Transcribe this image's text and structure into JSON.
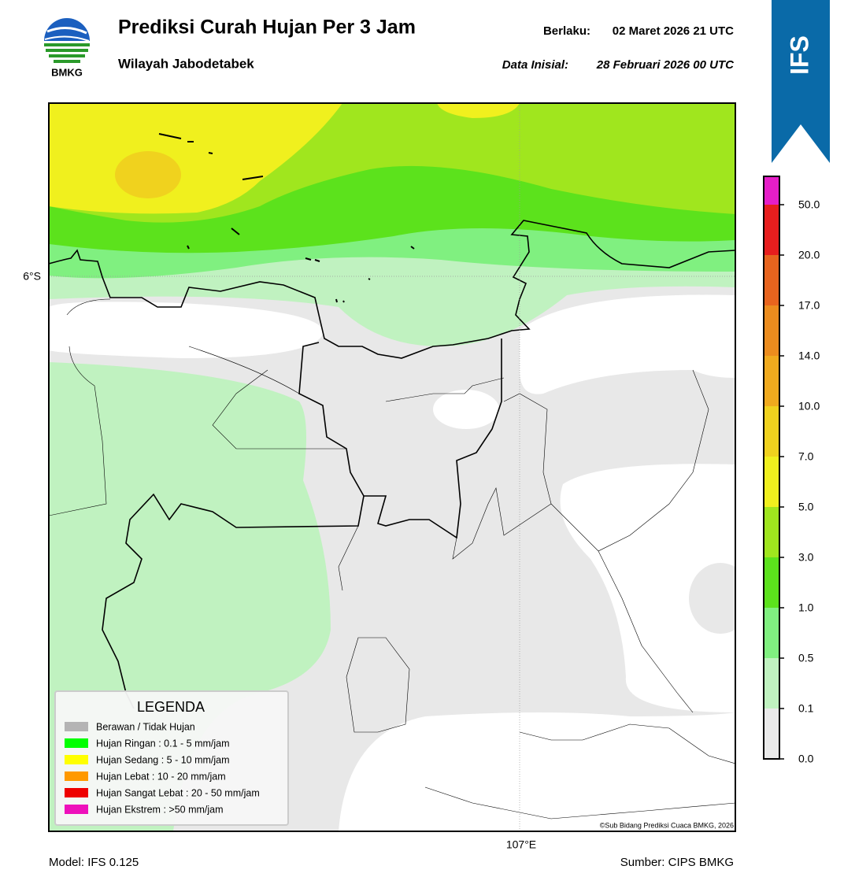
{
  "header": {
    "logo_text": "BMKG",
    "title": "Prediksi Curah Hujan Per 3 Jam",
    "subtitle": "Wilayah Jabodetabek",
    "valid_label": "Berlaku:",
    "valid_time": "02 Maret 2026 21 UTC",
    "init_label": "Data Inisial:",
    "init_time": "28 Februari 2026 00 UTC"
  },
  "banner": "IFS",
  "map": {
    "lat_label": "6°S",
    "lon_label": "107°E",
    "credit": "©Sub Bidang Prediksi Cuaca BMKG, 2026"
  },
  "legend": {
    "title": "LEGENDA",
    "items": [
      {
        "label": "Berawan / Tidak Hujan",
        "color": "#b4b4b4"
      },
      {
        "label": "Hujan Ringan : 0.1 - 5 mm/jam",
        "color": "#00ff00"
      },
      {
        "label": "Hujan Sedang : 5 - 10 mm/jam",
        "color": "#ffff00"
      },
      {
        "label": "Hujan Lebat : 10 - 20 mm/jam",
        "color": "#ff9900"
      },
      {
        "label": "Hujan Sangat Lebat : 20 - 50 mm/jam",
        "color": "#ee0000"
      },
      {
        "label": "Hujan Ekstrem : >50 mm/jam",
        "color": "#ee11bb"
      }
    ]
  },
  "colorbar": {
    "labels": [
      "0.0",
      "0.1",
      "0.5",
      "1.0",
      "3.0",
      "5.0",
      "7.0",
      "10.0",
      "14.0",
      "17.0",
      "20.0",
      "50.0"
    ],
    "colors": [
      "#eaeaea",
      "#c0f2c0",
      "#80f080",
      "#5ce21c",
      "#a0e61e",
      "#f0f01e",
      "#f0d21e",
      "#f0aa1e",
      "#ec8c1e",
      "#e8641e",
      "#e81e1e",
      "#e61ec8"
    ]
  },
  "footer": {
    "model": "Model: IFS 0.125",
    "source": "Sumber: CIPS BMKG"
  }
}
